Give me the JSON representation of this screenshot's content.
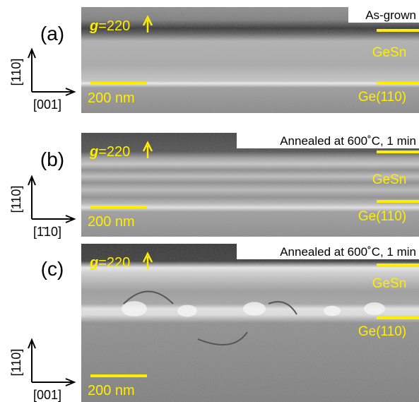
{
  "figure": {
    "panels": [
      {
        "label": "(a)",
        "caption": "As-grown",
        "g_symbol": "g",
        "g_value": "=220",
        "layer_top": "GeSn",
        "layer_bottom": "Ge(110)",
        "scale_bar": "200 nm",
        "axis_vertical": "[110]",
        "axis_horizontal": "[001]"
      },
      {
        "label": "(b)",
        "caption": "Annealed at 600˚C, 1 min",
        "g_symbol": "g",
        "g_value": "=220",
        "layer_top": "GeSn",
        "layer_bottom": "Ge(110)",
        "scale_bar": "200 nm",
        "axis_vertical": "[110]",
        "axis_horizontal": "[1̄10]"
      },
      {
        "label": "(c)",
        "caption": "Annealed at 600˚C, 1 min",
        "g_symbol": "g",
        "g_value": "=220",
        "layer_top": "GeSn",
        "layer_bottom": "Ge(110)",
        "scale_bar": "200 nm",
        "axis_vertical": "[110]",
        "axis_horizontal": "[001]"
      }
    ]
  }
}
